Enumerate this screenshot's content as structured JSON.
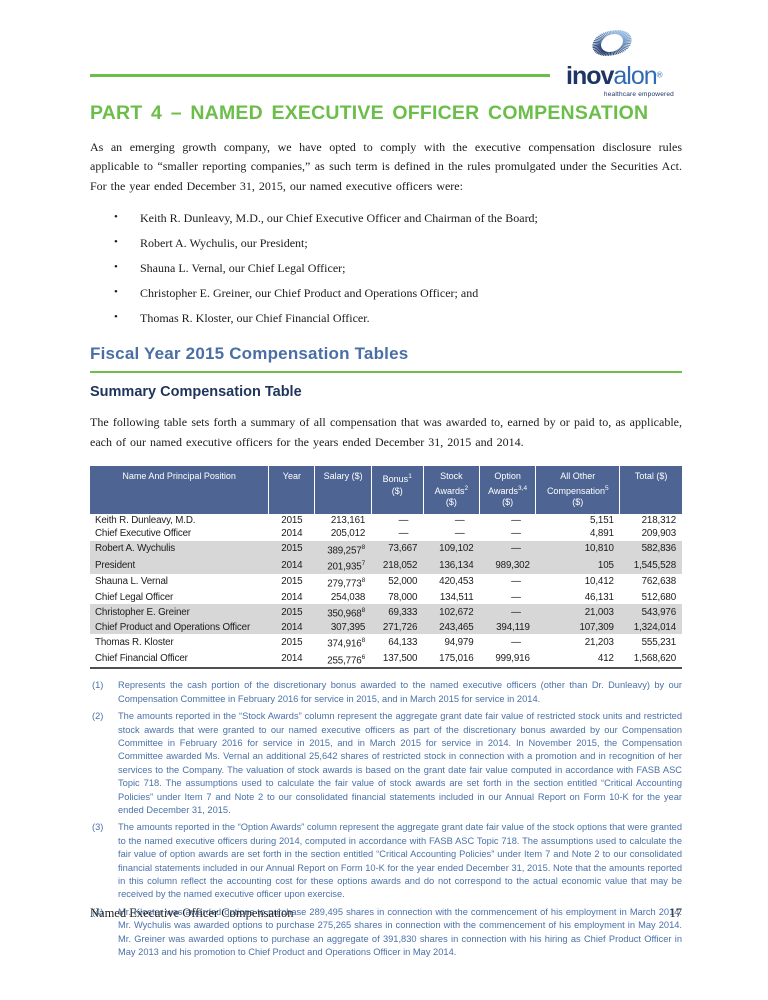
{
  "logo": {
    "brand_bold": "inov",
    "brand_light": "alon",
    "registered": "®",
    "tagline": "healthcare empowered"
  },
  "colors": {
    "green": "#6cbe4a",
    "section_blue": "#4a6fa5",
    "navy": "#1c3564",
    "logo_blue": "#2f6bb2",
    "logo_light_blue": "#8ab4e2",
    "table_header_bg": "#4e6593",
    "row_stripe": "#d7d7d7",
    "footnote_blue": "#4a71a9"
  },
  "page": {
    "part_heading": "PART 4 – NAMED EXECUTIVE OFFICER COMPENSATION",
    "intro": "As an emerging growth company, we have opted to comply with the executive compensation disclosure rules applicable to “smaller reporting companies,” as such term is defined in the rules promulgated under the Securities Act. For the year ended December 31, 2015, our named executive officers were:",
    "officers": [
      "Keith R. Dunleavy, M.D., our Chief Executive Officer and Chairman of the Board;",
      "Robert A. Wychulis, our President;",
      "Shauna L. Vernal, our Chief Legal Officer;",
      "Christopher E. Greiner, our Chief Product and Operations Officer; and",
      "Thomas R. Kloster, our Chief Financial Officer."
    ],
    "section_heading": "Fiscal Year 2015 Compensation Tables",
    "subsection_heading": "Summary Compensation Table",
    "table_intro": "The following table sets forth a summary of all compensation that was awarded to, earned by or paid to, as applicable, each of our named executive officers for the years ended December 31, 2015 and 2014."
  },
  "table": {
    "columns": [
      {
        "label": "Name And Principal Position",
        "sup": "",
        "unit": ""
      },
      {
        "label": "Year",
        "sup": "",
        "unit": ""
      },
      {
        "label": "Salary ($)",
        "sup": "",
        "unit": ""
      },
      {
        "label": "Bonus",
        "sup": "1",
        "unit": "($)"
      },
      {
        "label": "Stock Awards",
        "sup": "2",
        "unit": "($)"
      },
      {
        "label": "Option Awards",
        "sup": "3,4",
        "unit": "($)"
      },
      {
        "label": "All Other Compensation",
        "sup": "5",
        "unit": "($)"
      },
      {
        "label": "Total ($)",
        "sup": "",
        "unit": ""
      }
    ],
    "rows": [
      {
        "name": "Keith R. Dunleavy, M.D.",
        "year": "2015",
        "salary": "213,161",
        "salary_sup": "",
        "bonus": "—",
        "stock": "—",
        "option": "—",
        "other": "5,151",
        "total": "218,312",
        "shaded": false
      },
      {
        "name": "Chief Executive Officer",
        "year": "2014",
        "salary": "205,012",
        "salary_sup": "",
        "bonus": "—",
        "stock": "—",
        "option": "—",
        "other": "4,891",
        "total": "209,903",
        "shaded": false
      },
      {
        "name": "Robert A. Wychulis",
        "year": "2015",
        "salary": "389,257",
        "salary_sup": "8",
        "bonus": "73,667",
        "stock": "109,102",
        "option": "—",
        "other": "10,810",
        "total": "582,836",
        "shaded": true
      },
      {
        "name": "President",
        "year": "2014",
        "salary": "201,935",
        "salary_sup": "7",
        "bonus": "218,052",
        "stock": "136,134",
        "option": "989,302",
        "other": "105",
        "total": "1,545,528",
        "shaded": true
      },
      {
        "name": "Shauna L. Vernal",
        "year": "2015",
        "salary": "279,773",
        "salary_sup": "8",
        "bonus": "52,000",
        "stock": "420,453",
        "option": "—",
        "other": "10,412",
        "total": "762,638",
        "shaded": false
      },
      {
        "name": "Chief Legal Officer",
        "year": "2014",
        "salary": "254,038",
        "salary_sup": "",
        "bonus": "78,000",
        "stock": "134,511",
        "option": "—",
        "other": "46,131",
        "total": "512,680",
        "shaded": false
      },
      {
        "name": "Christopher E. Greiner",
        "year": "2015",
        "salary": "350,968",
        "salary_sup": "8",
        "bonus": "69,333",
        "stock": "102,672",
        "option": "—",
        "other": "21,003",
        "total": "543,976",
        "shaded": true
      },
      {
        "name": "Chief Product and Operations Officer",
        "year": "2014",
        "salary": "307,395",
        "salary_sup": "",
        "bonus": "271,726",
        "stock": "243,465",
        "option": "394,119",
        "other": "107,309",
        "total": "1,324,014",
        "shaded": true
      },
      {
        "name": "Thomas R. Kloster",
        "year": "2015",
        "salary": "374,916",
        "salary_sup": "8",
        "bonus": "64,133",
        "stock": "94,979",
        "option": "—",
        "other": "21,203",
        "total": "555,231",
        "shaded": false
      },
      {
        "name": "Chief Financial Officer",
        "year": "2014",
        "salary": "255,776",
        "salary_sup": "6",
        "bonus": "137,500",
        "stock": "175,016",
        "option": "999,916",
        "other": "412",
        "total": "1,568,620",
        "shaded": false
      }
    ]
  },
  "footnotes": [
    {
      "num": "(1)",
      "text": "Represents the cash portion of the discretionary bonus awarded to the named executive officers (other than Dr. Dunleavy) by our Compensation Committee in February 2016 for service in 2015, and in March 2015 for service in 2014."
    },
    {
      "num": "(2)",
      "text": "The amounts reported in the “Stock Awards” column represent the aggregate grant date fair value of restricted stock units and restricted stock awards that were granted to our named executive officers as part of the discretionary bonus awarded by our Compensation Committee in February 2016 for service in 2015, and in March 2015 for service in 2014. In November 2015, the Compensation Committee awarded Ms. Vernal an additional 25,642 shares of restricted stock in connection with a promotion and in recognition of her services to the Company. The valuation of stock awards is based on the grant date fair value computed in accordance with FASB ASC Topic 718. The assumptions used to calculate the fair value of stock awards are set forth in the section entitled “Critical Accounting Policies” under Item 7 and Note 2 to our consolidated financial statements included in our Annual Report on Form 10-K for the year ended December 31, 2015."
    },
    {
      "num": "(3)",
      "text": "The amounts reported in the “Option Awards” column represent the aggregate grant date fair value of the stock options that were granted to the named executive officers during 2014, computed in accordance with FASB ASC Topic 718. The assumptions used to calculate the fair value of option awards are set forth in the section entitled “Critical Accounting Policies” under Item 7 and Note 2 to our consolidated financial statements included in our Annual Report on Form 10-K for the year ended December 31, 2015. Note that the amounts reported in this column reflect the accounting cost for these options awards and do not correspond to the actual economic value that may be received by the named executive officer upon exercise."
    },
    {
      "num": "(4)",
      "text": "Mr. Kloster was awarded options to purchase 289,495 shares in connection with the commencement of his employment in March 2014. Mr. Wychulis was awarded options to purchase 275,265 shares in connection with the commencement of his employment in May 2014. Mr. Greiner was awarded options to purchase an aggregate of 391,830 shares in connection with his hiring as Chief Product Officer in May 2013 and his promotion to Chief Product and Operations Officer in May 2014."
    }
  ],
  "footer": {
    "left": "Named Executive Officer Compensation",
    "page_number": "17"
  }
}
